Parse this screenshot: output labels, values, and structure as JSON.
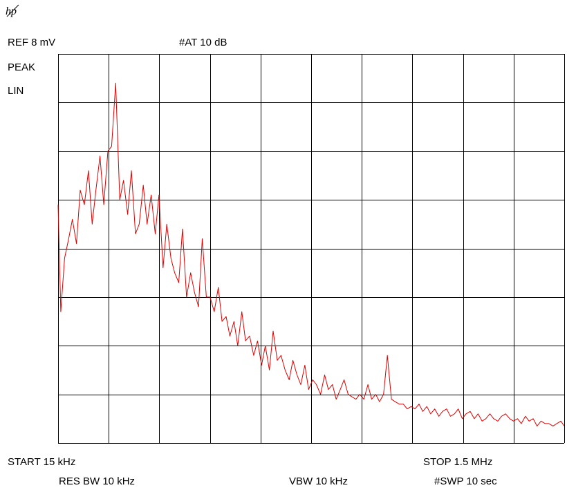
{
  "header": {
    "ref_level": "REF 8 mV",
    "attenuation": "#AT 10 dB",
    "detector": "PEAK",
    "scale": "LIN"
  },
  "footer": {
    "start": "START 15 kHz",
    "stop": "STOP 1.5 MHz",
    "rbw": "RES BW 10 kHz",
    "vbw": "VBW 10 kHz",
    "sweep": "#SWP 10 sec"
  },
  "colors": {
    "trace": "#e00000",
    "grid": "#000000"
  },
  "icons": {
    "logo": "hp-logo-icon"
  },
  "chart_data": {
    "type": "line",
    "title": "",
    "xlabel": "",
    "ylabel": "",
    "grid": true,
    "x_unit": "kHz",
    "y_unit": "mV",
    "xlim": [
      15,
      1500
    ],
    "ylim": [
      0,
      8
    ],
    "x_divisions": 10,
    "y_divisions": 8,
    "series": [
      {
        "x": [
          15,
          23,
          34,
          46,
          57,
          69,
          80,
          92,
          104,
          115,
          126,
          138,
          149,
          161,
          172,
          184,
          196,
          207,
          219,
          230,
          242,
          253,
          265,
          276,
          288,
          300,
          311,
          323,
          334,
          346,
          357,
          369,
          380,
          392,
          404,
          415,
          427,
          438,
          450,
          461,
          473,
          485,
          496,
          508,
          519,
          531,
          542,
          554,
          565,
          577,
          589,
          600,
          612,
          623,
          635,
          646,
          658,
          669,
          681,
          693,
          704,
          716,
          727,
          739,
          750,
          762,
          773,
          785,
          797,
          808,
          820,
          831,
          843,
          854,
          866,
          877,
          889,
          900,
          912,
          924,
          935,
          947,
          958,
          970,
          981,
          993,
          1004,
          1016,
          1028,
          1039,
          1051,
          1062,
          1074,
          1085,
          1097,
          1108,
          1120,
          1132,
          1143,
          1155,
          1166,
          1178,
          1189,
          1201,
          1212,
          1224,
          1236,
          1247,
          1259,
          1270,
          1282,
          1293,
          1305,
          1316,
          1328,
          1340,
          1351,
          1363,
          1374,
          1386,
          1397,
          1409,
          1420,
          1432,
          1444,
          1455,
          1467,
          1478,
          1490,
          1500
        ],
        "y": [
          4.9,
          2.7,
          3.8,
          4.2,
          4.6,
          4.1,
          5.2,
          4.9,
          5.6,
          4.5,
          5.2,
          5.9,
          4.9,
          6.0,
          6.1,
          7.4,
          5.0,
          5.4,
          4.7,
          5.6,
          4.3,
          4.5,
          5.3,
          4.5,
          5.1,
          4.3,
          5.1,
          3.6,
          4.5,
          3.8,
          3.5,
          3.3,
          4.4,
          3.0,
          3.5,
          3.1,
          2.8,
          4.2,
          3.0,
          3.0,
          2.7,
          3.2,
          2.5,
          2.6,
          2.2,
          2.5,
          2.0,
          2.7,
          2.1,
          2.2,
          1.8,
          2.1,
          1.6,
          2.0,
          1.5,
          2.3,
          1.7,
          1.8,
          1.5,
          1.3,
          1.7,
          1.4,
          1.2,
          1.6,
          1.1,
          1.3,
          1.2,
          1.0,
          1.4,
          1.1,
          1.2,
          0.9,
          1.1,
          1.3,
          1.0,
          0.95,
          0.9,
          1.0,
          0.9,
          1.2,
          0.9,
          1.0,
          0.85,
          1.0,
          1.8,
          0.9,
          0.85,
          0.8,
          0.8,
          0.7,
          0.75,
          0.7,
          0.8,
          0.65,
          0.75,
          0.6,
          0.7,
          0.55,
          0.65,
          0.7,
          0.55,
          0.6,
          0.7,
          0.5,
          0.6,
          0.65,
          0.5,
          0.6,
          0.45,
          0.5,
          0.6,
          0.5,
          0.45,
          0.55,
          0.6,
          0.5,
          0.45,
          0.5,
          0.4,
          0.55,
          0.45,
          0.5,
          0.35,
          0.45,
          0.4,
          0.4,
          0.35,
          0.4,
          0.45,
          0.35
        ]
      }
    ]
  }
}
